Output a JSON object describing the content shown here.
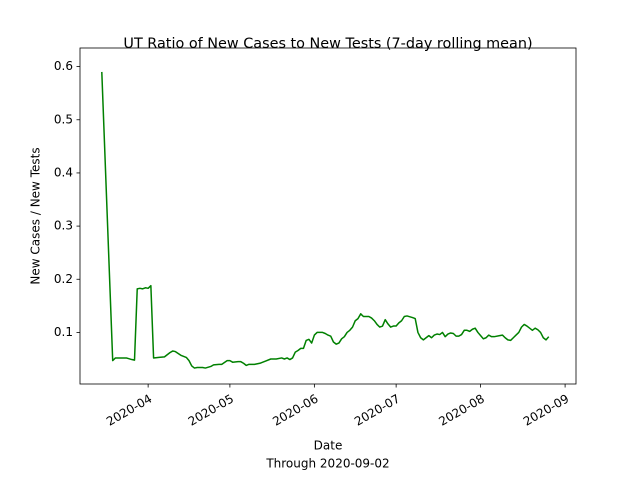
{
  "chart_data": {
    "type": "line",
    "title": "UT Ratio of New Cases to New Tests (7-day rolling mean)",
    "xlabel": "Date",
    "xlabel_note": "Through 2020-09-02",
    "ylabel": "New Cases / New Tests",
    "x": [
      "2020-03-15",
      "2020-03-19",
      "2020-03-20",
      "2020-03-22",
      "2020-03-24",
      "2020-03-26",
      "2020-03-27",
      "2020-03-28",
      "2020-03-29",
      "2020-03-30",
      "2020-03-31",
      "2020-04-01",
      "2020-04-02",
      "2020-04-03",
      "2020-04-05",
      "2020-04-07",
      "2020-04-09",
      "2020-04-10",
      "2020-04-11",
      "2020-04-13",
      "2020-04-15",
      "2020-04-16",
      "2020-04-17",
      "2020-04-18",
      "2020-04-19",
      "2020-04-21",
      "2020-04-22",
      "2020-04-24",
      "2020-04-25",
      "2020-04-27",
      "2020-04-28",
      "2020-04-30",
      "2020-05-01",
      "2020-05-02",
      "2020-05-04",
      "2020-05-05",
      "2020-05-06",
      "2020-05-07",
      "2020-05-08",
      "2020-05-10",
      "2020-05-12",
      "2020-05-14",
      "2020-05-16",
      "2020-05-18",
      "2020-05-20",
      "2020-05-21",
      "2020-05-22",
      "2020-05-23",
      "2020-05-24",
      "2020-05-25",
      "2020-05-26",
      "2020-05-27",
      "2020-05-28",
      "2020-05-29",
      "2020-05-30",
      "2020-05-31",
      "2020-06-01",
      "2020-06-02",
      "2020-06-04",
      "2020-06-05",
      "2020-06-06",
      "2020-06-07",
      "2020-06-08",
      "2020-06-09",
      "2020-06-10",
      "2020-06-11",
      "2020-06-12",
      "2020-06-13",
      "2020-06-14",
      "2020-06-15",
      "2020-06-16",
      "2020-06-17",
      "2020-06-18",
      "2020-06-19",
      "2020-06-21",
      "2020-06-22",
      "2020-06-23",
      "2020-06-24",
      "2020-06-25",
      "2020-06-26",
      "2020-06-27",
      "2020-06-28",
      "2020-06-29",
      "2020-06-30",
      "2020-07-01",
      "2020-07-02",
      "2020-07-03",
      "2020-07-04",
      "2020-07-05",
      "2020-07-07",
      "2020-07-08",
      "2020-07-09",
      "2020-07-10",
      "2020-07-11",
      "2020-07-12",
      "2020-07-13",
      "2020-07-14",
      "2020-07-15",
      "2020-07-16",
      "2020-07-17",
      "2020-07-18",
      "2020-07-19",
      "2020-07-20",
      "2020-07-21",
      "2020-07-22",
      "2020-07-23",
      "2020-07-24",
      "2020-07-25",
      "2020-07-26",
      "2020-07-27",
      "2020-07-28",
      "2020-07-29",
      "2020-07-30",
      "2020-07-31",
      "2020-08-01",
      "2020-08-02",
      "2020-08-03",
      "2020-08-04",
      "2020-08-05",
      "2020-08-06",
      "2020-08-08",
      "2020-08-09",
      "2020-08-10",
      "2020-08-11",
      "2020-08-12",
      "2020-08-13",
      "2020-08-14",
      "2020-08-15",
      "2020-08-16",
      "2020-08-17",
      "2020-08-18",
      "2020-08-19",
      "2020-08-20",
      "2020-08-21",
      "2020-08-22",
      "2020-08-23",
      "2020-08-24",
      "2020-08-25",
      "2020-08-26"
    ],
    "series": [
      {
        "color": "#008000",
        "values": [
          0.59,
          0.047,
          0.052,
          0.052,
          0.052,
          0.049,
          0.048,
          0.182,
          0.183,
          0.182,
          0.184,
          0.183,
          0.188,
          0.052,
          0.053,
          0.054,
          0.062,
          0.065,
          0.064,
          0.057,
          0.053,
          0.047,
          0.037,
          0.033,
          0.034,
          0.034,
          0.033,
          0.036,
          0.039,
          0.04,
          0.04,
          0.047,
          0.047,
          0.044,
          0.045,
          0.045,
          0.042,
          0.038,
          0.04,
          0.04,
          0.042,
          0.046,
          0.05,
          0.05,
          0.052,
          0.05,
          0.052,
          0.049,
          0.052,
          0.063,
          0.066,
          0.07,
          0.07,
          0.085,
          0.087,
          0.08,
          0.095,
          0.1,
          0.1,
          0.098,
          0.095,
          0.093,
          0.082,
          0.078,
          0.08,
          0.088,
          0.092,
          0.1,
          0.104,
          0.11,
          0.122,
          0.126,
          0.135,
          0.13,
          0.13,
          0.127,
          0.122,
          0.115,
          0.11,
          0.112,
          0.124,
          0.116,
          0.11,
          0.112,
          0.112,
          0.118,
          0.122,
          0.13,
          0.131,
          0.128,
          0.126,
          0.1,
          0.09,
          0.086,
          0.09,
          0.094,
          0.09,
          0.095,
          0.097,
          0.096,
          0.1,
          0.092,
          0.097,
          0.099,
          0.098,
          0.093,
          0.093,
          0.096,
          0.104,
          0.104,
          0.102,
          0.106,
          0.108,
          0.1,
          0.094,
          0.088,
          0.09,
          0.095,
          0.092,
          0.092,
          0.094,
          0.095,
          0.09,
          0.086,
          0.085,
          0.09,
          0.095,
          0.1,
          0.11,
          0.115,
          0.112,
          0.108,
          0.104,
          0.108,
          0.105,
          0.1,
          0.09,
          0.086,
          0.092
        ]
      }
    ],
    "xlim": [
      "2020-03-07",
      "2020-09-05"
    ],
    "xticks": [
      {
        "value": "2020-04-01",
        "label": "2020-04"
      },
      {
        "value": "2020-05-01",
        "label": "2020-05"
      },
      {
        "value": "2020-06-01",
        "label": "2020-06"
      },
      {
        "value": "2020-07-01",
        "label": "2020-07"
      },
      {
        "value": "2020-08-01",
        "label": "2020-08"
      },
      {
        "value": "2020-09-01",
        "label": "2020-09"
      }
    ],
    "ylim": [
      0.003,
      0.635
    ],
    "yticks": [
      0.1,
      0.2,
      0.3,
      0.4,
      0.5,
      0.6
    ],
    "grid": false
  }
}
